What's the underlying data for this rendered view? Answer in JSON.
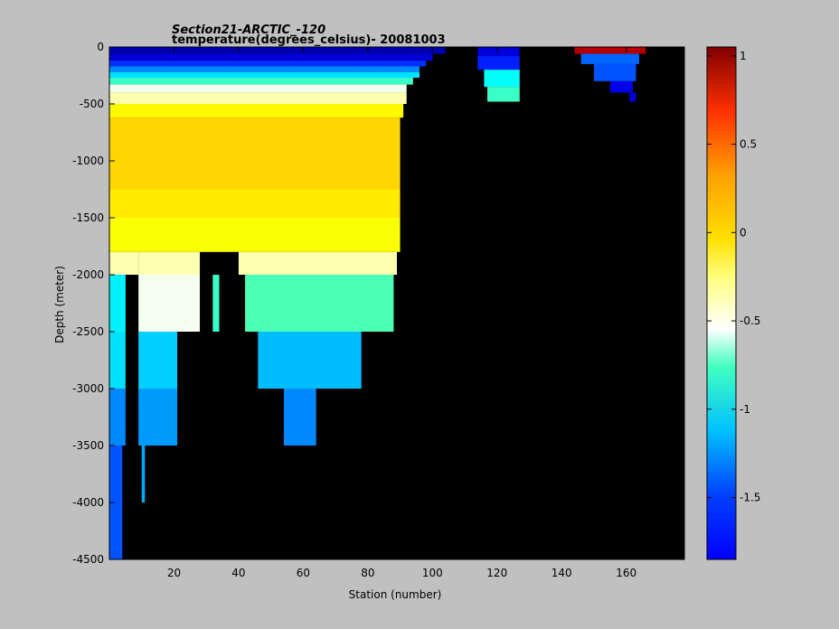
{
  "chart_data": {
    "type": "heatmap",
    "title": "Section21-ARCTIC_-120",
    "subtitle": "temperature(degrees_celsius)- 20081003",
    "xlabel": "Station (number)",
    "ylabel": "Depth (meter)",
    "xlim": [
      0,
      178
    ],
    "ylim": [
      -4500,
      0
    ],
    "xticks": [
      20,
      40,
      60,
      80,
      100,
      120,
      140,
      160
    ],
    "yticks": [
      0,
      -500,
      -1000,
      -1500,
      -2000,
      -2500,
      -3000,
      -3500,
      -4000,
      -4500
    ],
    "colorbar": {
      "range": [
        -1.85,
        1.05
      ],
      "ticks": [
        1,
        0.5,
        0,
        -0.5,
        -1,
        -1.5
      ],
      "colormap": "jet"
    },
    "background_color": "#000000",
    "cells": [
      {
        "x": [
          0,
          104
        ],
        "depth": [
          0,
          60
        ],
        "value": -1.72
      },
      {
        "x": [
          0,
          100
        ],
        "depth": [
          60,
          120
        ],
        "value": -1.6
      },
      {
        "x": [
          0,
          98
        ],
        "depth": [
          120,
          170
        ],
        "value": -1.35
      },
      {
        "x": [
          0,
          96
        ],
        "depth": [
          170,
          220
        ],
        "value": -1.1
      },
      {
        "x": [
          0,
          96
        ],
        "depth": [
          220,
          270
        ],
        "value": -0.85
      },
      {
        "x": [
          0,
          94
        ],
        "depth": [
          270,
          330
        ],
        "value": -0.6
      },
      {
        "x": [
          0,
          92
        ],
        "depth": [
          330,
          400
        ],
        "value": -0.35
      },
      {
        "x": [
          0,
          92
        ],
        "depth": [
          400,
          500
        ],
        "value": -0.12
      },
      {
        "x": [
          0,
          91
        ],
        "depth": [
          500,
          620
        ],
        "value": -0.02
      },
      {
        "x": [
          0,
          90
        ],
        "depth": [
          620,
          1250
        ],
        "value": 0.08
      },
      {
        "x": [
          0,
          90
        ],
        "depth": [
          1250,
          1500
        ],
        "value": 0.02
      },
      {
        "x": [
          0,
          90
        ],
        "depth": [
          1500,
          1800
        ],
        "value": -0.05
      },
      {
        "x": [
          0,
          9
        ],
        "depth": [
          1800,
          2000
        ],
        "value": -0.1
      },
      {
        "x": [
          9,
          28
        ],
        "depth": [
          1800,
          2000
        ],
        "value": -0.12
      },
      {
        "x": [
          40,
          89
        ],
        "depth": [
          1800,
          2000
        ],
        "value": -0.12
      },
      {
        "x": [
          0,
          5
        ],
        "depth": [
          2000,
          2500
        ],
        "value": -0.8
      },
      {
        "x": [
          9,
          28
        ],
        "depth": [
          2000,
          2500
        ],
        "value": -0.45
      },
      {
        "x": [
          32,
          34
        ],
        "depth": [
          2000,
          2500
        ],
        "value": -0.6
      },
      {
        "x": [
          42,
          88
        ],
        "depth": [
          2000,
          2500
        ],
        "value": -0.55
      },
      {
        "x": [
          0,
          5
        ],
        "depth": [
          2500,
          3000
        ],
        "value": -0.85
      },
      {
        "x": [
          9,
          21
        ],
        "depth": [
          2500,
          3000
        ],
        "value": -0.9
      },
      {
        "x": [
          46,
          78
        ],
        "depth": [
          2500,
          3000
        ],
        "value": -0.95
      },
      {
        "x": [
          0,
          5
        ],
        "depth": [
          3000,
          3500
        ],
        "value": -1.1
      },
      {
        "x": [
          9,
          21
        ],
        "depth": [
          3000,
          3500
        ],
        "value": -1.05
      },
      {
        "x": [
          54,
          64
        ],
        "depth": [
          3000,
          3500
        ],
        "value": -1.1
      },
      {
        "x": [
          0,
          4
        ],
        "depth": [
          3500,
          4500
        ],
        "value": -1.25
      },
      {
        "x": [
          10,
          11
        ],
        "depth": [
          3500,
          4000
        ],
        "value": -1.0
      },
      {
        "x": [
          114,
          127
        ],
        "depth": [
          0,
          80
        ],
        "value": -1.6
      },
      {
        "x": [
          114,
          127
        ],
        "depth": [
          80,
          200
        ],
        "value": -1.4
      },
      {
        "x": [
          116,
          127
        ],
        "depth": [
          200,
          350
        ],
        "value": -0.75
      },
      {
        "x": [
          117,
          127
        ],
        "depth": [
          350,
          480
        ],
        "value": -0.6
      },
      {
        "x": [
          144,
          166
        ],
        "depth": [
          0,
          60
        ],
        "value": 0.9
      },
      {
        "x": [
          146,
          164
        ],
        "depth": [
          60,
          150
        ],
        "value": -1.2
      },
      {
        "x": [
          150,
          163
        ],
        "depth": [
          150,
          300
        ],
        "value": -1.25
      },
      {
        "x": [
          155,
          162
        ],
        "depth": [
          300,
          400
        ],
        "value": -1.55
      },
      {
        "x": [
          161,
          163
        ],
        "depth": [
          400,
          480
        ],
        "value": -1.6
      }
    ]
  }
}
